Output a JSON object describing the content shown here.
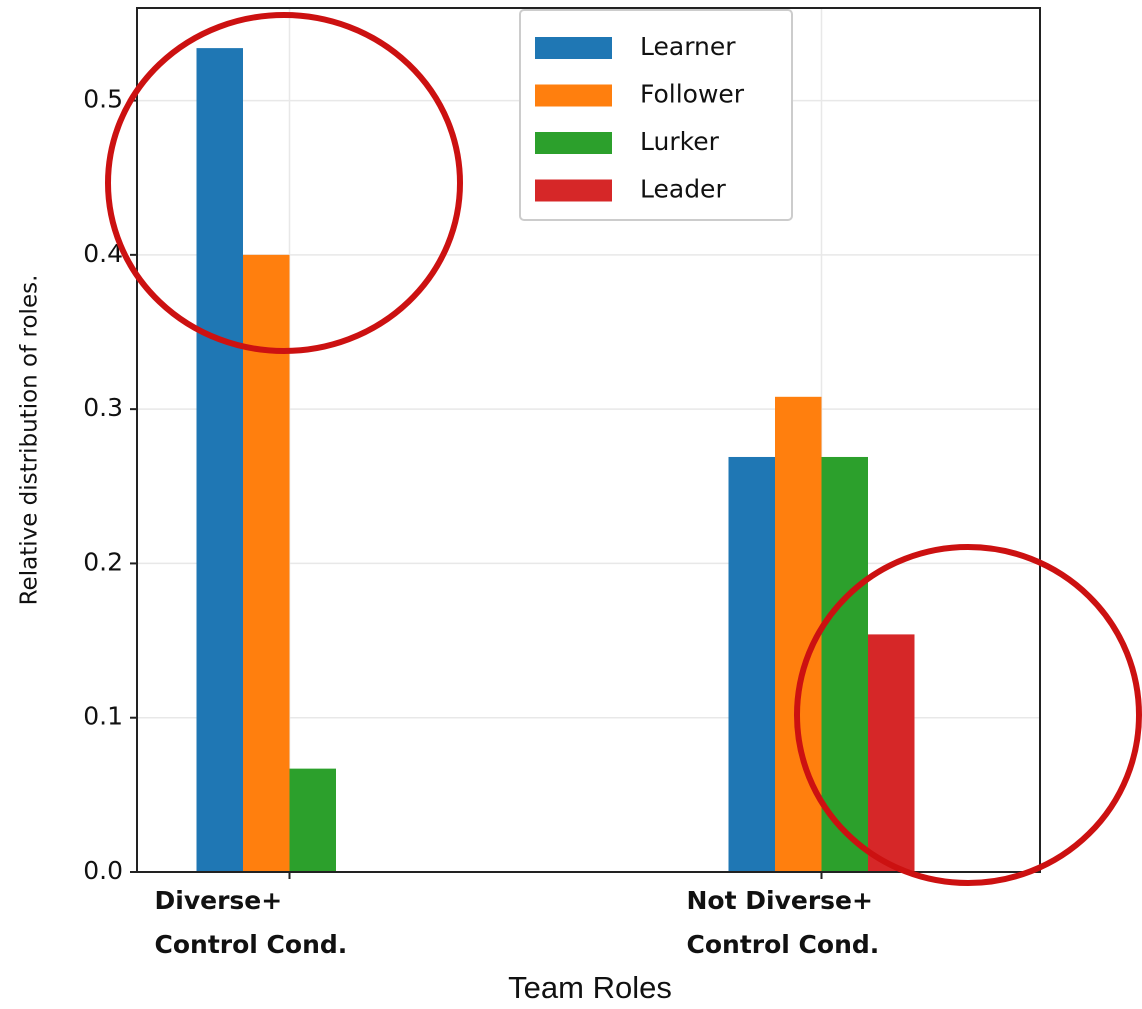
{
  "chart_data": {
    "type": "bar",
    "y_label": "Relative distribution of roles.",
    "x_label": "Team Roles",
    "categories": [
      "Diverse+\nControl Cond.",
      "Not Diverse+\nControl Cond."
    ],
    "series": [
      {
        "name": "Learner",
        "color": "#1f77b4",
        "values": [
          0.534,
          0.269
        ]
      },
      {
        "name": "Follower",
        "color": "#ff7f0e",
        "values": [
          0.4,
          0.308
        ]
      },
      {
        "name": "Lurker",
        "color": "#2ca02c",
        "values": [
          0.067,
          0.269
        ]
      },
      {
        "name": "Leader",
        "color": "#d62728",
        "values": [
          0,
          0.154
        ]
      }
    ],
    "ylim": [
      0,
      0.56
    ],
    "yticks": [
      {
        "value": 0,
        "label": "0.0"
      },
      0.1,
      0.2,
      0.3,
      0.4,
      0.5
    ],
    "grid": true,
    "legend": "upper center"
  }
}
